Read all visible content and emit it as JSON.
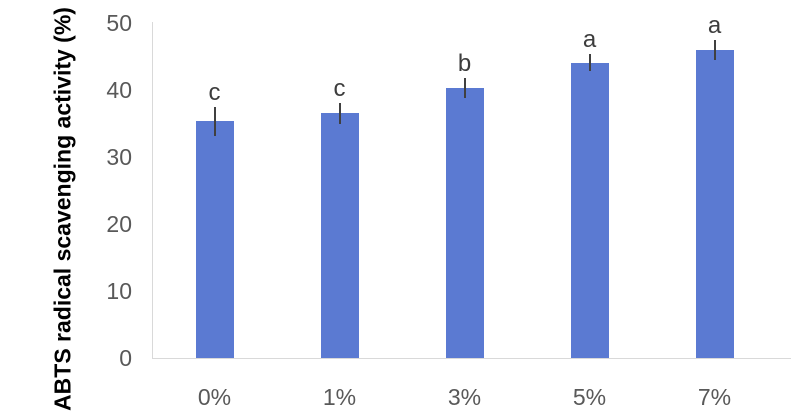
{
  "chart_data": {
    "type": "bar",
    "title": "",
    "xlabel": "",
    "ylabel": "ABTS radical scavenging activity (%)",
    "categories": [
      "0%",
      "1%",
      "3%",
      "5%",
      "7%"
    ],
    "series": [
      {
        "name": "ABTS radical scavenging activity",
        "values": [
          35.3,
          36.5,
          40.3,
          44.1,
          46.0
        ],
        "errors_plus": [
          2.2,
          1.6,
          1.5,
          1.3,
          1.5
        ],
        "sig_letters": [
          "c",
          "c",
          "b",
          "a",
          "a"
        ]
      }
    ],
    "ylim": [
      0,
      50
    ],
    "yticks": [
      0,
      10,
      20,
      30,
      40,
      50
    ],
    "grid": false,
    "legend": "none",
    "colors": {
      "bar_fill": "#5b7ad2",
      "error_bar": "#404040",
      "axis_line": "#d9d9d9",
      "tick_label": "#595959",
      "sig_letter": "#3d3d3d",
      "axis_title": "#000000",
      "background": "#ffffff"
    }
  }
}
